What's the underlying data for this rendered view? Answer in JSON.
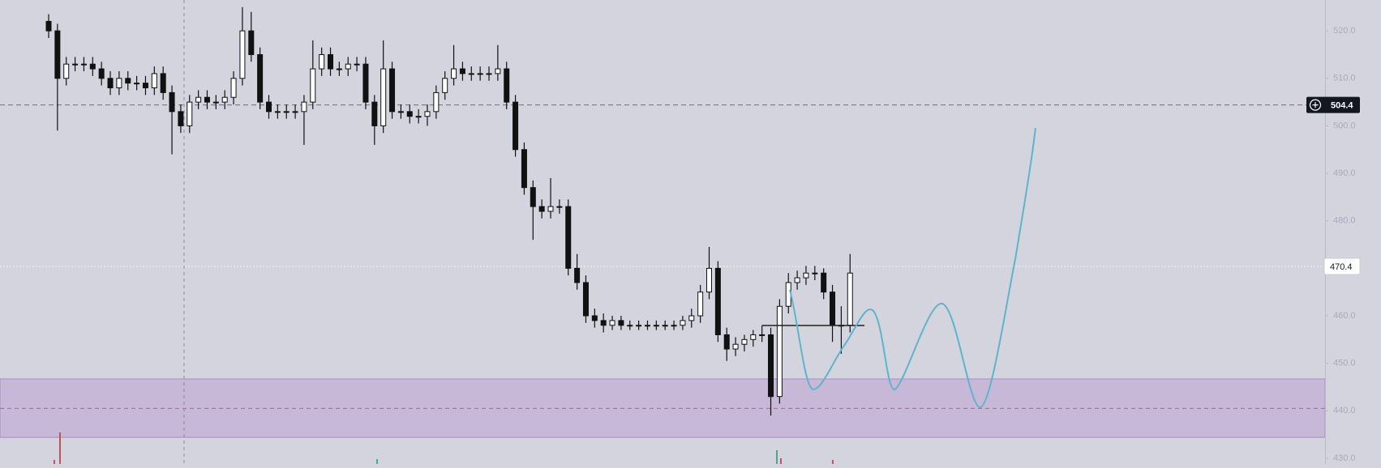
{
  "chart_data": {
    "type": "candlestick",
    "open": [
      522,
      520,
      510,
      513,
      513,
      513,
      512,
      510,
      508,
      510,
      509,
      509,
      508,
      511,
      507,
      503,
      500,
      505,
      506,
      505,
      505,
      506,
      510,
      520,
      515,
      505,
      503,
      503,
      503,
      503,
      505,
      512,
      515,
      512,
      512,
      513,
      513,
      505,
      500,
      512,
      503,
      503,
      502,
      502,
      503,
      507,
      510,
      512,
      511,
      511,
      511,
      511,
      512,
      505,
      495,
      487,
      483,
      482,
      483,
      483,
      470,
      467,
      460,
      459,
      458,
      459,
      458,
      458,
      458,
      458,
      458,
      458,
      458,
      459,
      460,
      465,
      470,
      456,
      453,
      454,
      455,
      456,
      456,
      443,
      462,
      467,
      468,
      469,
      469,
      465,
      458,
      458
    ],
    "high": [
      523.5,
      521.5,
      514.5,
      514.5,
      514.5,
      514.5,
      513.5,
      511.5,
      511.5,
      511.5,
      510.5,
      510.5,
      512.5,
      512.5,
      508.5,
      504.5,
      506.5,
      507.5,
      507.5,
      506.5,
      507.5,
      511.5,
      525,
      524,
      516.5,
      506.5,
      504.5,
      504.5,
      504.5,
      506.5,
      518,
      516.5,
      516.5,
      513.5,
      514.5,
      514.5,
      514.5,
      506.5,
      518,
      513.5,
      504.5,
      504.5,
      503.5,
      504.5,
      508.5,
      511.5,
      517,
      513.5,
      512.5,
      512.5,
      512.5,
      517,
      513.5,
      506.5,
      496.5,
      488.5,
      484.5,
      489,
      484.5,
      484.5,
      473,
      468.5,
      461.5,
      460.5,
      460,
      460,
      459,
      459,
      459,
      459,
      459,
      459,
      460,
      461.5,
      466.5,
      474.5,
      471.5,
      457.5,
      455.5,
      456,
      457,
      458,
      457.5,
      463.5,
      469,
      469.5,
      470.5,
      470.5,
      470,
      466.5,
      462,
      473
    ],
    "low": [
      518.5,
      499,
      508.5,
      511.5,
      511.5,
      510.5,
      508.5,
      506.5,
      506.5,
      507.5,
      507.5,
      506.5,
      506.5,
      505.5,
      494,
      498.5,
      498.5,
      503.5,
      503.5,
      503.5,
      503.5,
      504.5,
      508.5,
      513.5,
      503.5,
      501.5,
      501.5,
      501.5,
      501.5,
      496,
      503.5,
      510.5,
      510.5,
      510.5,
      510.5,
      511.5,
      503.5,
      496,
      498.5,
      501.5,
      501.5,
      500.5,
      500.5,
      500,
      501.5,
      505.5,
      508.5,
      509.5,
      509.5,
      509.5,
      509.5,
      509.5,
      503.5,
      493.5,
      485.5,
      476,
      480.5,
      480.5,
      481.5,
      468.5,
      465.5,
      458.5,
      457.5,
      456.5,
      457,
      457,
      457,
      457,
      457,
      457,
      457,
      457,
      457,
      457.5,
      458.5,
      463.5,
      454.5,
      450.5,
      451.5,
      452.5,
      453.5,
      454.5,
      439,
      441.5,
      460.5,
      465.5,
      466.5,
      467.5,
      463.5,
      454.5,
      452,
      456.5
    ],
    "close": [
      520,
      510,
      513,
      513,
      513,
      512,
      510,
      508,
      510,
      509,
      509,
      508,
      511,
      507,
      503,
      500,
      505,
      506,
      505,
      505,
      506,
      510,
      520,
      515,
      505,
      503,
      503,
      503,
      503,
      505,
      512,
      515,
      512,
      512,
      513,
      513,
      505,
      500,
      512,
      503,
      503,
      502,
      502,
      503,
      507,
      510,
      512,
      511,
      511,
      511,
      511,
      512,
      505,
      495,
      487,
      483,
      482,
      483,
      483,
      470,
      467,
      460,
      459,
      458,
      459,
      458,
      458,
      458,
      458,
      458,
      458,
      458,
      459,
      460,
      465,
      470,
      456,
      453,
      454,
      455,
      456,
      456,
      443,
      462,
      467,
      468,
      469,
      469,
      465,
      458,
      458,
      469
    ],
    "ylim": [
      428.8,
      526.5
    ],
    "yticks": [
      {
        "value": 430,
        "label": "430.0"
      },
      {
        "value": 440,
        "label": "440.0"
      },
      {
        "value": 450,
        "label": "450.0"
      },
      {
        "value": 460,
        "label": "460.0"
      },
      {
        "value": 470,
        "label": "470.0"
      },
      {
        "value": 480,
        "label": "480.0"
      },
      {
        "value": 490,
        "label": "490.0"
      },
      {
        "value": 500,
        "label": "500.0"
      },
      {
        "value": 510,
        "label": "510.0"
      },
      {
        "value": 520,
        "label": "520.0"
      }
    ],
    "price_labels": [
      504.4,
      470.4
    ],
    "zone": [
      434.4,
      446.7
    ],
    "zone_mid": 440.5
  }
}
